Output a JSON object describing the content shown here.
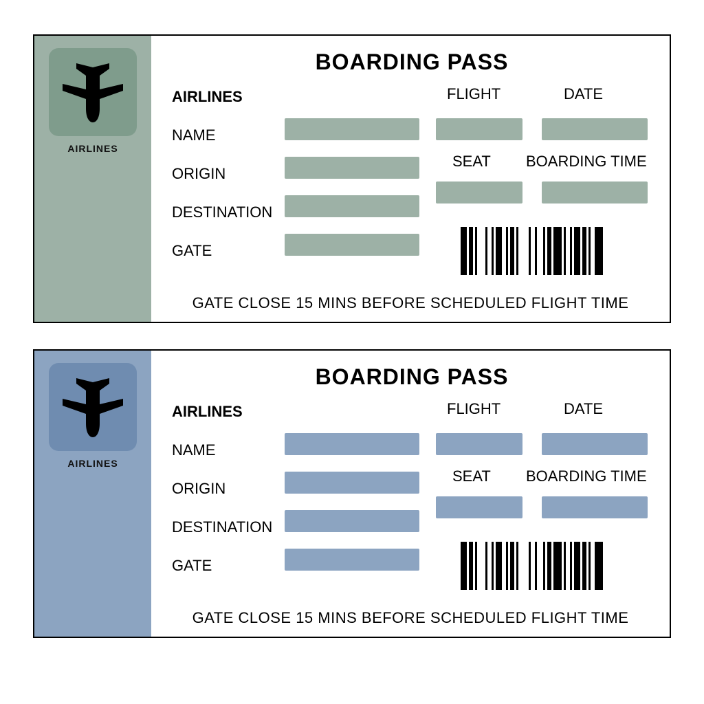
{
  "passes": [
    {
      "stub_color": "#9db1a6",
      "plane_box_color": "#7f9c8c",
      "field_color": "#9db1a6",
      "stub_label": "AIRLINES",
      "title": "BOARDING PASS",
      "airlines_label": "AIRLINES",
      "name_label": "NAME",
      "origin_label": "ORIGIN",
      "destination_label": "DESTINATION",
      "gate_label": "GATE",
      "flight_label": "FLIGHT",
      "date_label": "DATE",
      "seat_label": "SEAT",
      "boarding_time_label": "BOARDING TIME",
      "footer": "GATE CLOSE 15 MINS BEFORE SCHEDULED FLIGHT TIME"
    },
    {
      "stub_color": "#8ca4c1",
      "plane_box_color": "#6f8cb0",
      "field_color": "#8ca4c1",
      "stub_label": "AIRLINES",
      "title": "BOARDING PASS",
      "airlines_label": "AIRLINES",
      "name_label": "NAME",
      "origin_label": "ORIGIN",
      "destination_label": "DESTINATION",
      "gate_label": "GATE",
      "flight_label": "FLIGHT",
      "date_label": "DATE",
      "seat_label": "SEAT",
      "boarding_time_label": "BOARDING TIME",
      "footer": "GATE CLOSE 15 MINS BEFORE SCHEDULED FLIGHT TIME"
    }
  ],
  "barcode_bars": [
    3,
    1,
    2,
    1,
    1,
    4,
    1,
    2,
    1,
    1,
    3,
    2,
    1,
    1,
    2,
    1,
    1,
    5,
    1,
    2,
    1,
    3,
    1,
    1,
    2,
    1,
    4,
    1,
    1,
    2,
    1,
    1,
    3,
    1,
    2,
    1,
    1,
    2,
    4
  ],
  "colors": {
    "border": "#000000",
    "text": "#000000",
    "background": "#ffffff"
  }
}
